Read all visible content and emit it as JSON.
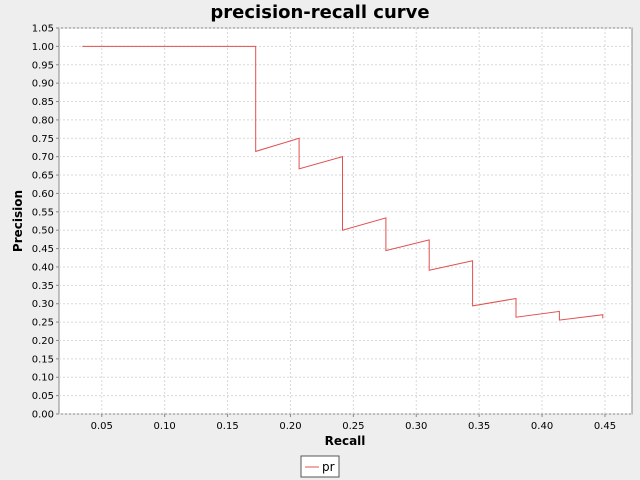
{
  "chart_data": {
    "type": "line",
    "title": "precision-recall curve",
    "xlabel": "Recall",
    "ylabel": "Precision",
    "xlim": [
      0.016,
      0.4715
    ],
    "ylim": [
      0.0,
      1.05
    ],
    "xticks": [
      "0.05",
      "0.10",
      "0.15",
      "0.20",
      "0.25",
      "0.30",
      "0.35",
      "0.40",
      "0.45"
    ],
    "yticks": [
      "0.00",
      "0.05",
      "0.10",
      "0.15",
      "0.20",
      "0.25",
      "0.30",
      "0.35",
      "0.40",
      "0.45",
      "0.50",
      "0.55",
      "0.60",
      "0.65",
      "0.70",
      "0.75",
      "0.80",
      "0.85",
      "0.90",
      "0.95",
      "1.00",
      "1.05"
    ],
    "grid": true,
    "legend_position": "bottom",
    "series": [
      {
        "name": "pr",
        "color": "#e05050",
        "points": [
          [
            0.0345,
            1.0
          ],
          [
            0.1724,
            1.0
          ],
          [
            0.1724,
            0.7143
          ],
          [
            0.2069,
            0.75
          ],
          [
            0.2069,
            0.6667
          ],
          [
            0.2414,
            0.7
          ],
          [
            0.2414,
            0.5
          ],
          [
            0.2759,
            0.5333
          ],
          [
            0.2759,
            0.4444
          ],
          [
            0.3103,
            0.4737
          ],
          [
            0.3103,
            0.3913
          ],
          [
            0.3448,
            0.4167
          ],
          [
            0.3448,
            0.2941
          ],
          [
            0.3793,
            0.3143
          ],
          [
            0.3793,
            0.2632
          ],
          [
            0.4138,
            0.2791
          ],
          [
            0.4138,
            0.2553
          ],
          [
            0.4483,
            0.27
          ],
          [
            0.4483,
            0.26
          ]
        ]
      }
    ]
  }
}
